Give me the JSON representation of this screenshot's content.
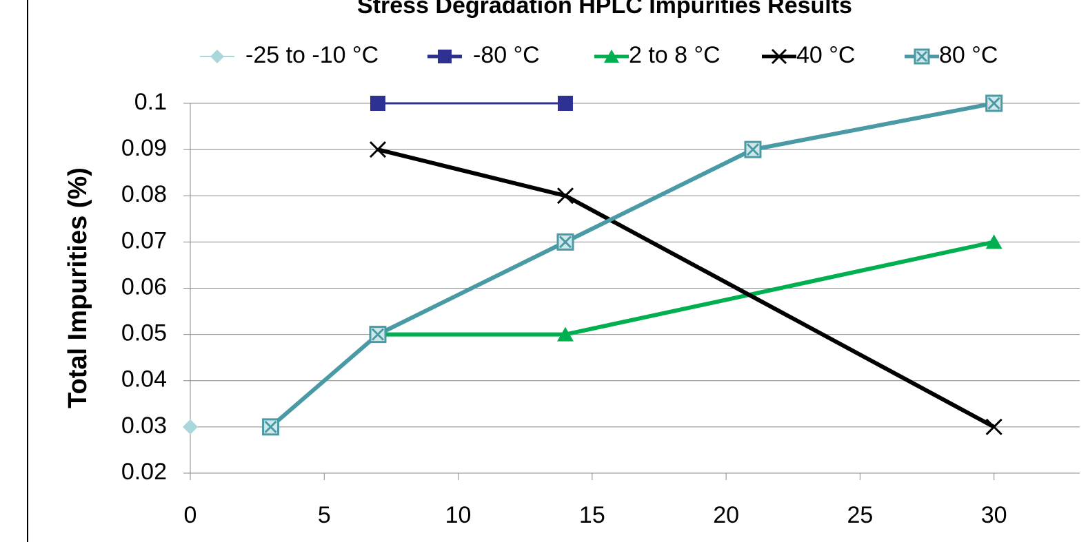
{
  "chart_data": {
    "type": "line",
    "title": "Stress Degradation HPLC Impurities Results",
    "y_label": "Total Impurities (%)",
    "xlim": [
      0,
      33.2
    ],
    "xticks": [
      0,
      5,
      10,
      15,
      20,
      25,
      30
    ],
    "ylim": [
      0.02,
      0.1
    ],
    "yticks": [
      0.02,
      0.03,
      0.04,
      0.05,
      0.06,
      0.07,
      0.08,
      0.09,
      0.1
    ],
    "grid": true,
    "legend": "top",
    "series": [
      {
        "name": "-25 to -10 °C",
        "color": "#a8d8dc",
        "marker": "diamond",
        "x": [
          0
        ],
        "values": [
          0.03
        ]
      },
      {
        "name": "-80 °C",
        "color": "#2e3192",
        "marker": "square",
        "x": [
          7,
          14
        ],
        "values": [
          0.1,
          0.1
        ]
      },
      {
        "name": "2 to 8 °C",
        "color": "#00b050",
        "marker": "triangle",
        "x": [
          7,
          14,
          30
        ],
        "values": [
          0.05,
          0.05,
          0.07
        ]
      },
      {
        "name": "40 °C",
        "color": "#000000",
        "marker": "x",
        "x": [
          7,
          14,
          30
        ],
        "values": [
          0.09,
          0.08,
          0.03
        ]
      },
      {
        "name": "80 °C",
        "color": "#4a9aa5",
        "marker": "squarex",
        "x": [
          3,
          7,
          14,
          21,
          30
        ],
        "values": [
          0.03,
          0.05,
          0.07,
          0.09,
          0.1
        ]
      }
    ]
  }
}
